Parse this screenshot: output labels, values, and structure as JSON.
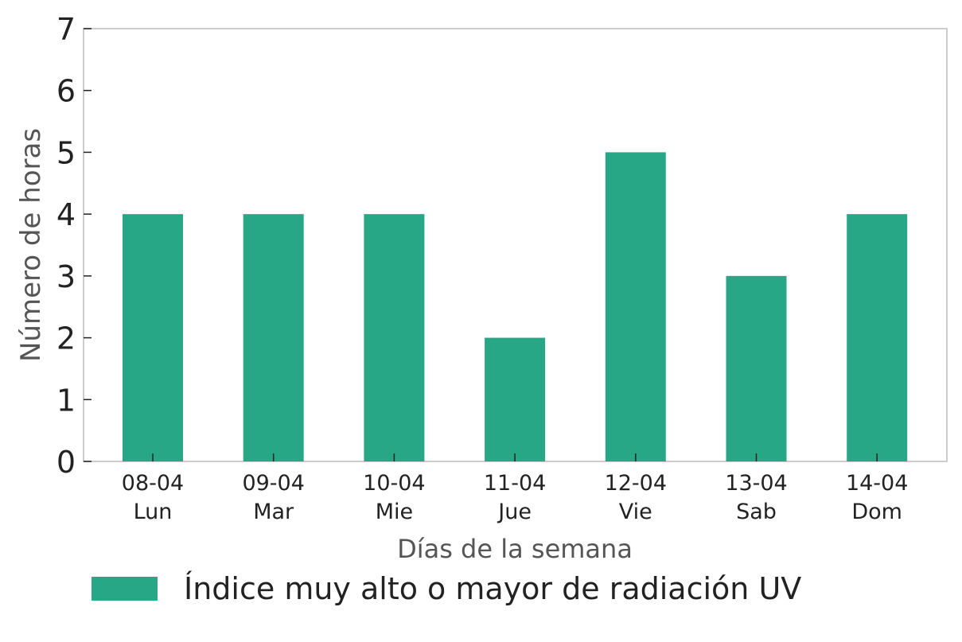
{
  "chart_data": {
    "type": "bar",
    "categories": [
      {
        "date": "08-04",
        "day": "Lun"
      },
      {
        "date": "09-04",
        "day": "Mar"
      },
      {
        "date": "10-04",
        "day": "Mie"
      },
      {
        "date": "11-04",
        "day": "Jue"
      },
      {
        "date": "12-04",
        "day": "Vie"
      },
      {
        "date": "13-04",
        "day": "Sab"
      },
      {
        "date": "14-04",
        "day": "Dom"
      }
    ],
    "series": [
      {
        "name": "Índice muy alto o mayor de radiación UV",
        "values": [
          4,
          4,
          4,
          2,
          5,
          3,
          4
        ],
        "color": "#28a787"
      }
    ],
    "xlabel": "Días de la semana",
    "ylabel": "Número de horas",
    "ylim": [
      0,
      7
    ],
    "yticks": [
      0,
      1,
      2,
      3,
      4,
      5,
      6,
      7
    ],
    "grid": false,
    "legend_position": "bottom-center",
    "frame_color": "#cccccc"
  }
}
